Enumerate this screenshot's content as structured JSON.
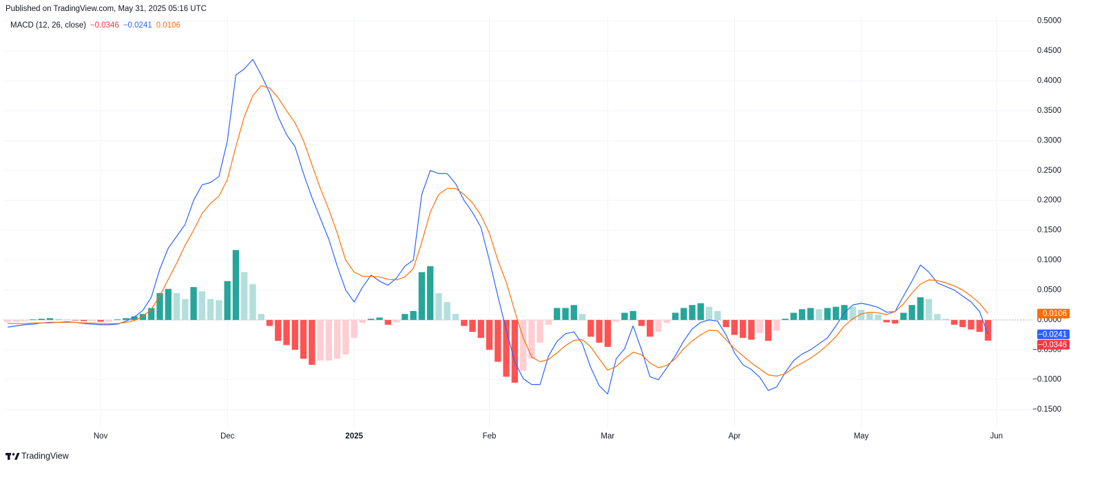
{
  "header": "Published on TradingView.com, May 31, 2025 05:16 UTC",
  "footer": "TradingView",
  "chart_data": {
    "type": "macd",
    "legend_title": "MACD (12, 26, close)",
    "grid": true,
    "categories": [
      null,
      null,
      null,
      null,
      null,
      null,
      null,
      null,
      null,
      null,
      null,
      "Nov",
      null,
      null,
      null,
      null,
      null,
      null,
      null,
      null,
      null,
      null,
      null,
      null,
      null,
      null,
      "Dec",
      null,
      null,
      null,
      null,
      null,
      null,
      null,
      null,
      null,
      null,
      null,
      null,
      null,
      null,
      "2025",
      null,
      null,
      null,
      null,
      null,
      null,
      null,
      null,
      null,
      null,
      null,
      null,
      null,
      null,
      null,
      "Feb",
      null,
      null,
      null,
      null,
      null,
      null,
      null,
      null,
      null,
      null,
      null,
      null,
      null,
      "Mar",
      null,
      null,
      null,
      null,
      null,
      null,
      null,
      null,
      null,
      null,
      null,
      null,
      null,
      null,
      "Apr",
      null,
      null,
      null,
      null,
      null,
      null,
      null,
      null,
      null,
      null,
      null,
      null,
      null,
      null,
      "May",
      null,
      null,
      null,
      null,
      null,
      null,
      null,
      null,
      null,
      null,
      null,
      null,
      null,
      null,
      null,
      "Jun",
      null,
      null,
      null,
      null
    ],
    "ylim": [
      -0.181,
      0.51
    ],
    "yticks": [
      {
        "value": 0.5,
        "label": "0.5000"
      },
      {
        "value": 0.45,
        "label": "0.4500"
      },
      {
        "value": 0.4,
        "label": "0.4000"
      },
      {
        "value": 0.35,
        "label": "0.3500"
      },
      {
        "value": 0.3,
        "label": "0.3000"
      },
      {
        "value": 0.25,
        "label": "0.2500"
      },
      {
        "value": 0.2,
        "label": "0.2000"
      },
      {
        "value": 0.15,
        "label": "0.1500"
      },
      {
        "value": 0.1,
        "label": "0.1000"
      },
      {
        "value": 0.05,
        "label": "0.0500"
      },
      {
        "value": 0,
        "label": "0.0000"
      },
      {
        "value": -0.05,
        "label": "−0.0500"
      },
      {
        "value": -0.1,
        "label": "−0.1000"
      },
      {
        "value": -0.15,
        "label": "−0.1500"
      }
    ],
    "series": [
      {
        "kind": "histogram",
        "color": "#f23645",
        "colors": {
          "rising_above": "#26a69a",
          "falling_above": "#b2dfdb",
          "rising_below": "#ffcdd2",
          "falling_below": "#ff5252"
        },
        "values": [
          -0.004,
          -0.003,
          -0.002,
          0.001,
          0.002,
          0.003,
          0.002,
          0.001,
          -0.001,
          -0.002,
          -0.002,
          -0.003,
          -0.003,
          0.001,
          0.003,
          0.006,
          0.01,
          0.02,
          0.045,
          0.052,
          0.045,
          0.035,
          0.055,
          0.048,
          0.035,
          0.033,
          0.065,
          0.117,
          0.08,
          0.06,
          0.01,
          -0.01,
          -0.035,
          -0.042,
          -0.05,
          -0.065,
          -0.075,
          -0.068,
          -0.068,
          -0.065,
          -0.058,
          -0.03,
          -0.005,
          0.002,
          0.004,
          -0.008,
          -0.004,
          0.01,
          0.015,
          0.08,
          0.09,
          0.045,
          0.03,
          0.01,
          -0.01,
          -0.02,
          -0.03,
          -0.05,
          -0.07,
          -0.095,
          -0.105,
          -0.085,
          -0.065,
          -0.038,
          -0.008,
          0.02,
          0.02,
          0.025,
          0.01,
          -0.028,
          -0.038,
          -0.045,
          -0.003,
          0.012,
          0.015,
          -0.01,
          -0.028,
          -0.02,
          -0.005,
          0.012,
          0.02,
          0.025,
          0.028,
          0.022,
          0.015,
          -0.012,
          -0.025,
          -0.03,
          -0.033,
          -0.022,
          -0.035,
          -0.018,
          0.002,
          0.012,
          0.018,
          0.02,
          0.018,
          0.02,
          0.022,
          0.025,
          0.022,
          0.017,
          0.012,
          0.009,
          -0.004,
          -0.006,
          0.012,
          0.025,
          0.038,
          0.035,
          0.01,
          0.002,
          -0.008,
          -0.012,
          -0.016,
          -0.02,
          -0.0346,
          null,
          null,
          null,
          null,
          null
        ],
        "value_labels": [
          null,
          null,
          null,
          null,
          null,
          null,
          null,
          null,
          null,
          null,
          null,
          null,
          null,
          null,
          null,
          null,
          null,
          null,
          null,
          null,
          null,
          null,
          null,
          null,
          null,
          null,
          null,
          null,
          null,
          null,
          null,
          null,
          null,
          null,
          null,
          null,
          null,
          null,
          null,
          null,
          null,
          null,
          null,
          null,
          null,
          null,
          null,
          null,
          null,
          null,
          null,
          null,
          null,
          null,
          null,
          null,
          null,
          null,
          null,
          null,
          null,
          null,
          null,
          null,
          null,
          null,
          null,
          null,
          null,
          null,
          null,
          null,
          null,
          null,
          null,
          null,
          null,
          null,
          null,
          null,
          null,
          null,
          null,
          null,
          null,
          null,
          null,
          null,
          null,
          null,
          null,
          null,
          null,
          null,
          null,
          null,
          null,
          null,
          null,
          null,
          null,
          null,
          null,
          null,
          null,
          null,
          null,
          null,
          null,
          null,
          null,
          null,
          null,
          null,
          null,
          null,
          "−0.0346",
          null,
          null,
          null,
          null,
          null
        ]
      },
      {
        "kind": "line",
        "color": "#2962ff",
        "values": [
          -0.012,
          -0.01,
          -0.008,
          -0.007,
          -0.005,
          -0.004,
          -0.004,
          -0.003,
          -0.004,
          -0.006,
          -0.007,
          -0.008,
          -0.008,
          -0.007,
          -0.002,
          0.005,
          0.016,
          0.038,
          0.085,
          0.12,
          0.14,
          0.16,
          0.2,
          0.226,
          0.23,
          0.24,
          0.3,
          0.41,
          0.42,
          0.436,
          0.41,
          0.38,
          0.34,
          0.31,
          0.29,
          0.245,
          0.205,
          0.17,
          0.135,
          0.09,
          0.05,
          0.03,
          0.055,
          0.075,
          0.065,
          0.058,
          0.07,
          0.09,
          0.1,
          0.21,
          0.25,
          0.245,
          0.245,
          0.228,
          0.2,
          0.18,
          0.155,
          0.1,
          0.04,
          -0.017,
          -0.07,
          -0.098,
          -0.108,
          -0.108,
          -0.06,
          -0.036,
          -0.023,
          -0.02,
          -0.04,
          -0.08,
          -0.11,
          -0.124,
          -0.065,
          -0.048,
          -0.01,
          -0.05,
          -0.095,
          -0.1,
          -0.08,
          -0.06,
          -0.035,
          -0.015,
          -0.004,
          0,
          -0.002,
          -0.025,
          -0.055,
          -0.075,
          -0.083,
          -0.096,
          -0.118,
          -0.112,
          -0.088,
          -0.068,
          -0.057,
          -0.05,
          -0.04,
          -0.03,
          -0.01,
          0.012,
          0.025,
          0.028,
          0.025,
          0.021,
          0.013,
          0.014,
          0.04,
          0.065,
          0.092,
          0.08,
          0.062,
          0.056,
          0.05,
          0.04,
          0.03,
          0.014,
          -0.0241,
          null,
          null,
          null,
          null,
          null
        ],
        "value_labels": [
          null,
          null,
          null,
          null,
          null,
          null,
          null,
          null,
          null,
          null,
          null,
          null,
          null,
          null,
          null,
          null,
          null,
          null,
          null,
          null,
          null,
          null,
          null,
          null,
          null,
          null,
          null,
          null,
          null,
          null,
          null,
          null,
          null,
          null,
          null,
          null,
          null,
          null,
          null,
          null,
          null,
          null,
          null,
          null,
          null,
          null,
          null,
          null,
          null,
          null,
          null,
          null,
          null,
          null,
          null,
          null,
          null,
          null,
          null,
          null,
          null,
          null,
          null,
          null,
          null,
          null,
          null,
          null,
          null,
          null,
          null,
          null,
          null,
          null,
          null,
          null,
          null,
          null,
          null,
          null,
          null,
          null,
          null,
          null,
          null,
          null,
          null,
          null,
          null,
          null,
          null,
          null,
          null,
          null,
          null,
          null,
          null,
          null,
          null,
          null,
          null,
          null,
          null,
          null,
          null,
          null,
          null,
          null,
          null,
          null,
          null,
          null,
          null,
          null,
          null,
          null,
          "−0.0241",
          null,
          null,
          null,
          null,
          null
        ]
      },
      {
        "kind": "line",
        "color": "#ff6d00",
        "values": [
          -0.006,
          -0.006,
          -0.006,
          -0.005,
          -0.005,
          -0.005,
          -0.004,
          -0.004,
          -0.004,
          -0.005,
          -0.005,
          -0.006,
          -0.006,
          -0.006,
          -0.004,
          -0.001,
          0.006,
          0.018,
          0.04,
          0.068,
          0.095,
          0.125,
          0.15,
          0.178,
          0.195,
          0.207,
          0.235,
          0.29,
          0.34,
          0.375,
          0.392,
          0.388,
          0.372,
          0.35,
          0.33,
          0.3,
          0.26,
          0.22,
          0.185,
          0.145,
          0.1,
          0.08,
          0.073,
          0.073,
          0.072,
          0.068,
          0.067,
          0.072,
          0.086,
          0.13,
          0.18,
          0.21,
          0.22,
          0.22,
          0.21,
          0.196,
          0.175,
          0.145,
          0.1,
          0.063,
          0.015,
          -0.03,
          -0.062,
          -0.07,
          -0.066,
          -0.055,
          -0.043,
          -0.034,
          -0.033,
          -0.045,
          -0.065,
          -0.084,
          -0.078,
          -0.065,
          -0.054,
          -0.058,
          -0.072,
          -0.08,
          -0.076,
          -0.065,
          -0.048,
          -0.035,
          -0.025,
          -0.017,
          -0.018,
          -0.033,
          -0.048,
          -0.06,
          -0.072,
          -0.082,
          -0.092,
          -0.094,
          -0.09,
          -0.08,
          -0.072,
          -0.064,
          -0.054,
          -0.042,
          -0.028,
          -0.01,
          0.002,
          0.01,
          0.013,
          0.012,
          0.009,
          0.014,
          0.027,
          0.045,
          0.06,
          0.067,
          0.066,
          0.062,
          0.057,
          0.05,
          0.04,
          0.028,
          0.0106,
          null,
          null,
          null,
          null,
          null
        ],
        "value_labels": [
          null,
          null,
          null,
          null,
          null,
          null,
          null,
          null,
          null,
          null,
          null,
          null,
          null,
          null,
          null,
          null,
          null,
          null,
          null,
          null,
          null,
          null,
          null,
          null,
          null,
          null,
          null,
          null,
          null,
          null,
          null,
          null,
          null,
          null,
          null,
          null,
          null,
          null,
          null,
          null,
          null,
          null,
          null,
          null,
          null,
          null,
          null,
          null,
          null,
          null,
          null,
          null,
          null,
          null,
          null,
          null,
          null,
          null,
          null,
          null,
          null,
          null,
          null,
          null,
          null,
          null,
          null,
          null,
          null,
          null,
          null,
          null,
          null,
          null,
          null,
          null,
          null,
          null,
          null,
          null,
          null,
          null,
          null,
          null,
          null,
          null,
          null,
          null,
          null,
          null,
          null,
          null,
          null,
          null,
          null,
          null,
          null,
          null,
          null,
          null,
          null,
          null,
          null,
          null,
          null,
          null,
          null,
          null,
          null,
          null,
          null,
          null,
          null,
          null,
          null,
          null,
          "0.0106",
          null,
          null,
          null,
          null,
          null
        ]
      }
    ]
  }
}
